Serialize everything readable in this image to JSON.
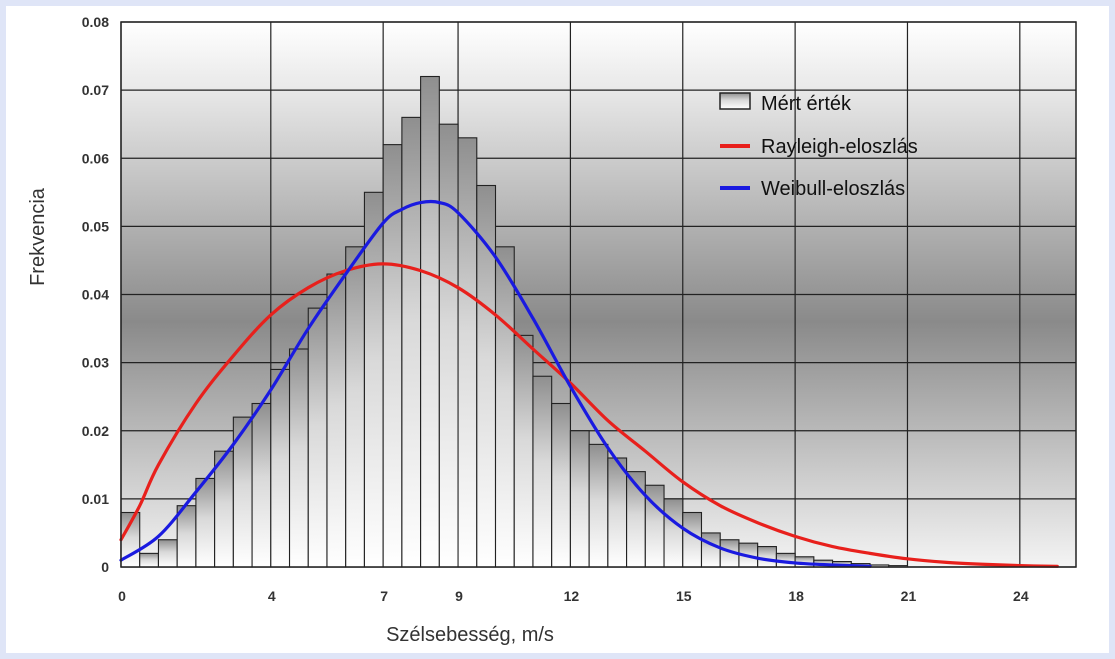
{
  "chart_data": {
    "type": "bar",
    "xlabel": "Szélsebesség, m/s",
    "ylabel": "Frekvencia",
    "xlim": [
      0,
      25.5
    ],
    "ylim": [
      0,
      0.08
    ],
    "x_ticks": [
      0,
      4,
      7,
      9,
      12,
      15,
      18,
      21,
      24
    ],
    "x_tick_labels": [
      "0",
      "4",
      "7",
      "9",
      "12",
      "15",
      "18",
      "21",
      "24"
    ],
    "y_ticks": [
      0,
      0.01,
      0.02,
      0.03,
      0.04,
      0.05,
      0.06,
      0.07,
      0.08
    ],
    "y_tick_labels": [
      "0",
      "0.01",
      "0.02",
      "0.03",
      "0.04",
      "0.05",
      "0.06",
      "0.07",
      "0.08"
    ],
    "grid": true,
    "legend_position": "top-right",
    "histogram": {
      "name": "Mért érték",
      "bin_width": 0.5,
      "bin_starts": [
        0,
        0.5,
        1,
        1.5,
        2,
        2.5,
        3,
        3.5,
        4,
        4.5,
        5,
        5.5,
        6,
        6.5,
        7,
        7.5,
        8,
        8.5,
        9,
        9.5,
        10,
        10.5,
        11,
        11.5,
        12,
        12.5,
        13,
        13.5,
        14,
        14.5,
        15,
        15.5,
        16,
        16.5,
        17,
        17.5,
        18,
        18.5,
        19,
        19.5,
        20,
        20.5
      ],
      "values": [
        0.008,
        0.002,
        0.004,
        0.009,
        0.013,
        0.017,
        0.022,
        0.024,
        0.029,
        0.032,
        0.038,
        0.043,
        0.047,
        0.055,
        0.062,
        0.066,
        0.072,
        0.065,
        0.063,
        0.056,
        0.047,
        0.034,
        0.028,
        0.024,
        0.02,
        0.018,
        0.016,
        0.014,
        0.012,
        0.01,
        0.008,
        0.005,
        0.004,
        0.0035,
        0.003,
        0.002,
        0.0015,
        0.001,
        0.0008,
        0.0005,
        0.0003,
        0.0002
      ]
    },
    "series": [
      {
        "name": "Rayleigh-eloszlás",
        "color": "#e8201c",
        "x": [
          0,
          0.5,
          1,
          2,
          3,
          4,
          5,
          6,
          7,
          8,
          9,
          10,
          11,
          12,
          13,
          14,
          15,
          16,
          17,
          18,
          19,
          20,
          21,
          22,
          23,
          24,
          25
        ],
        "y": [
          0.004,
          0.009,
          0.015,
          0.024,
          0.031,
          0.037,
          0.041,
          0.0435,
          0.0445,
          0.0435,
          0.041,
          0.037,
          0.032,
          0.027,
          0.0215,
          0.017,
          0.0125,
          0.009,
          0.0065,
          0.0045,
          0.003,
          0.002,
          0.0012,
          0.0007,
          0.0004,
          0.0002,
          0.0001
        ]
      },
      {
        "name": "Weibull-eloszlás",
        "color": "#1a1ae0",
        "x": [
          0,
          1,
          2,
          3,
          4,
          5,
          6,
          7,
          7.5,
          8,
          8.5,
          9,
          10,
          11,
          12,
          13,
          14,
          15,
          16,
          17,
          18,
          19,
          20
        ],
        "y": [
          0.001,
          0.0045,
          0.011,
          0.018,
          0.026,
          0.035,
          0.043,
          0.0505,
          0.0525,
          0.0535,
          0.0535,
          0.052,
          0.0455,
          0.0365,
          0.0265,
          0.0175,
          0.0105,
          0.0057,
          0.0028,
          0.0013,
          0.0006,
          0.0003,
          0.0001
        ]
      }
    ]
  }
}
